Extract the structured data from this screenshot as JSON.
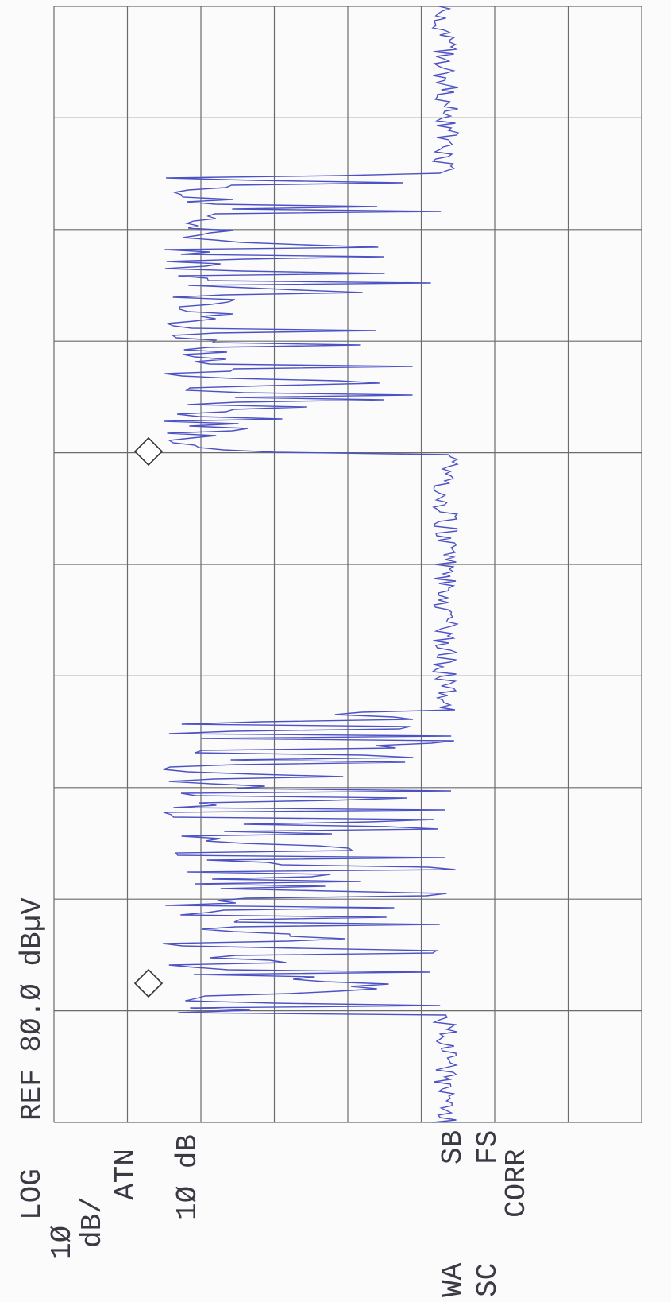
{
  "header": {
    "reference": "REF 8Ø.Ø dBµV"
  },
  "scale": {
    "mode": "LOG",
    "step": "1Ø",
    "unit": "dB/"
  },
  "attenuation": {
    "label": "ATN",
    "value": "1Ø dB"
  },
  "status": {
    "left_top": "WA",
    "left_bottom": "SB",
    "right_top": "SC",
    "right_bottom": "FS",
    "correction": "CORR"
  }
}
